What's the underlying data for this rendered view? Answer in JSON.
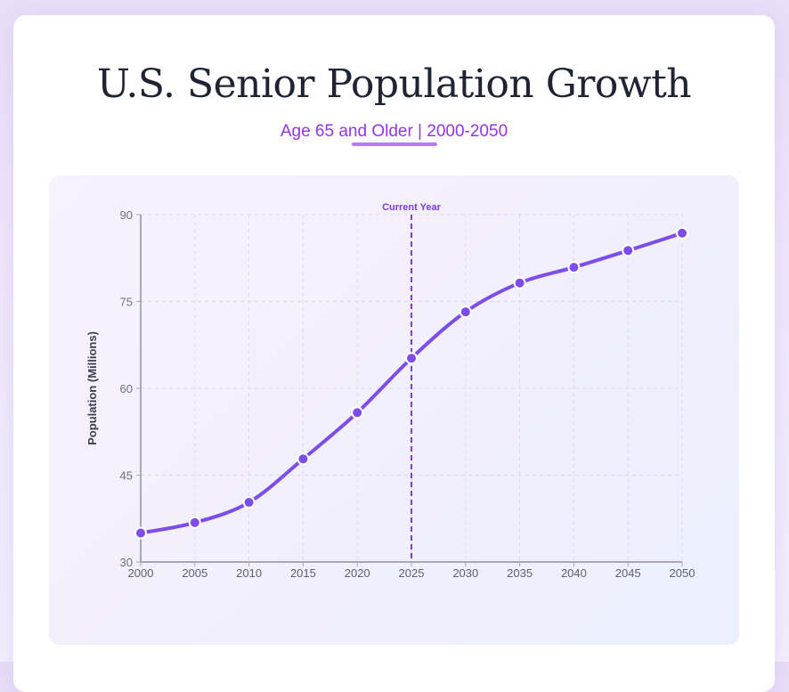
{
  "header": {
    "title": "U.S. Senior Population Growth",
    "subtitle": "Age 65 and Older | 2000-2050"
  },
  "chart_data": {
    "type": "line",
    "title": "",
    "xlabel": "",
    "ylabel": "Population (Millions)",
    "x": [
      2000,
      2005,
      2010,
      2015,
      2020,
      2025,
      2030,
      2035,
      2040,
      2045,
      2050
    ],
    "series": [
      {
        "values": [
          35.0,
          36.8,
          40.3,
          47.8,
          55.8,
          65.2,
          73.2,
          78.2,
          80.9,
          83.8,
          86.8
        ]
      }
    ],
    "xlim": [
      2000,
      2050
    ],
    "ylim": [
      30,
      90
    ],
    "yticks": [
      30,
      45,
      60,
      75,
      90
    ],
    "xticks": [
      2000,
      2005,
      2010,
      2015,
      2020,
      2025,
      2030,
      2035,
      2040,
      2045,
      2050
    ],
    "grid": true,
    "annotations": [
      {
        "x": 2025,
        "label": "Current Year",
        "style": "dashed vertical line"
      }
    ],
    "colors": {
      "line": "#7c4dea",
      "annotation": "#7c3aed",
      "grid": "#ddd6f3",
      "axis": "#a9a6b8"
    }
  }
}
